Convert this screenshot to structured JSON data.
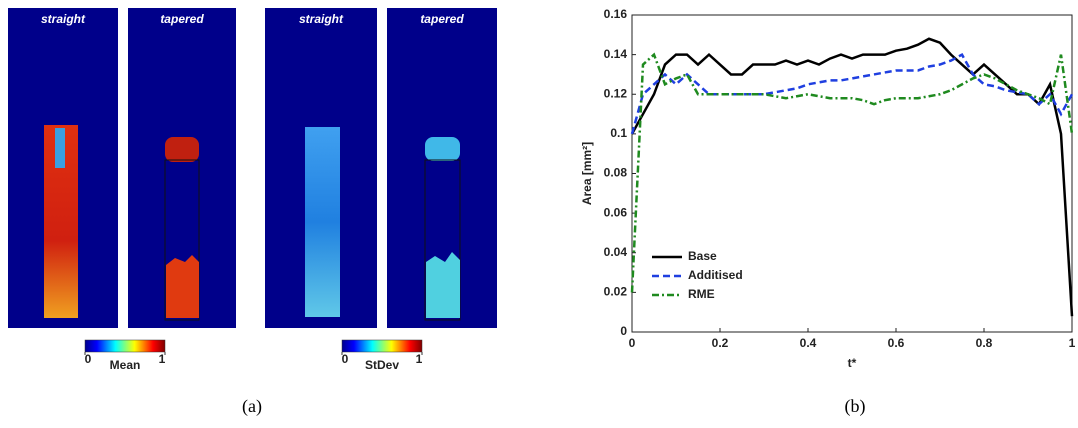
{
  "panel_a": {
    "panels": [
      {
        "label": "straight"
      },
      {
        "label": "tapered"
      },
      {
        "label": "straight"
      },
      {
        "label": "tapered"
      }
    ],
    "colorbars": [
      {
        "label": "Mean",
        "range": [
          0,
          1
        ],
        "ticks": [
          0,
          1
        ]
      },
      {
        "label": "StDev",
        "range": [
          0,
          1
        ],
        "ticks": [
          0,
          1
        ]
      }
    ],
    "caption": "(a)"
  },
  "chart_data": {
    "type": "line",
    "caption": "(b)",
    "xlabel": "t*",
    "ylabel": "Area [mm²]",
    "xlim": [
      0,
      1
    ],
    "ylim": [
      0,
      0.16
    ],
    "xticks": [
      0,
      0.2,
      0.4,
      0.6,
      0.8,
      1
    ],
    "yticks": [
      0,
      0.02,
      0.04,
      0.06,
      0.08,
      0.1,
      0.12,
      0.14,
      0.16
    ],
    "legend": "lower left",
    "x": [
      0,
      0.025,
      0.05,
      0.075,
      0.1,
      0.125,
      0.15,
      0.175,
      0.2,
      0.225,
      0.25,
      0.275,
      0.3,
      0.325,
      0.35,
      0.375,
      0.4,
      0.425,
      0.45,
      0.475,
      0.5,
      0.525,
      0.55,
      0.575,
      0.6,
      0.625,
      0.65,
      0.675,
      0.7,
      0.725,
      0.75,
      0.775,
      0.8,
      0.825,
      0.85,
      0.875,
      0.9,
      0.925,
      0.95,
      0.975,
      1
    ],
    "series": [
      {
        "name": "Base",
        "color": "#000000",
        "dash": "solid",
        "values": [
          0.1,
          0.11,
          0.12,
          0.135,
          0.14,
          0.14,
          0.135,
          0.14,
          0.135,
          0.13,
          0.13,
          0.135,
          0.135,
          0.135,
          0.137,
          0.135,
          0.137,
          0.135,
          0.138,
          0.14,
          0.138,
          0.14,
          0.14,
          0.14,
          0.142,
          0.143,
          0.145,
          0.148,
          0.146,
          0.14,
          0.135,
          0.13,
          0.135,
          0.13,
          0.125,
          0.12,
          0.12,
          0.115,
          0.125,
          0.1,
          0.008
        ]
      },
      {
        "name": "Additised",
        "color": "#1f3fe0",
        "dash": "dashed",
        "values": [
          0.1,
          0.12,
          0.125,
          0.13,
          0.125,
          0.13,
          0.125,
          0.12,
          0.12,
          0.12,
          0.12,
          0.12,
          0.12,
          0.121,
          0.122,
          0.123,
          0.125,
          0.126,
          0.127,
          0.127,
          0.128,
          0.129,
          0.13,
          0.131,
          0.132,
          0.132,
          0.132,
          0.134,
          0.135,
          0.137,
          0.14,
          0.13,
          0.125,
          0.124,
          0.122,
          0.121,
          0.12,
          0.115,
          0.12,
          0.11,
          0.12
        ]
      },
      {
        "name": "RME",
        "color": "#1f8a1f",
        "dash": "dashdot",
        "values": [
          0.02,
          0.135,
          0.14,
          0.125,
          0.128,
          0.13,
          0.12,
          0.12,
          0.12,
          0.12,
          0.12,
          0.12,
          0.12,
          0.119,
          0.118,
          0.119,
          0.12,
          0.119,
          0.118,
          0.118,
          0.118,
          0.117,
          0.115,
          0.117,
          0.118,
          0.118,
          0.118,
          0.119,
          0.12,
          0.122,
          0.125,
          0.128,
          0.13,
          0.128,
          0.125,
          0.122,
          0.12,
          0.118,
          0.115,
          0.14,
          0.1
        ]
      }
    ]
  }
}
